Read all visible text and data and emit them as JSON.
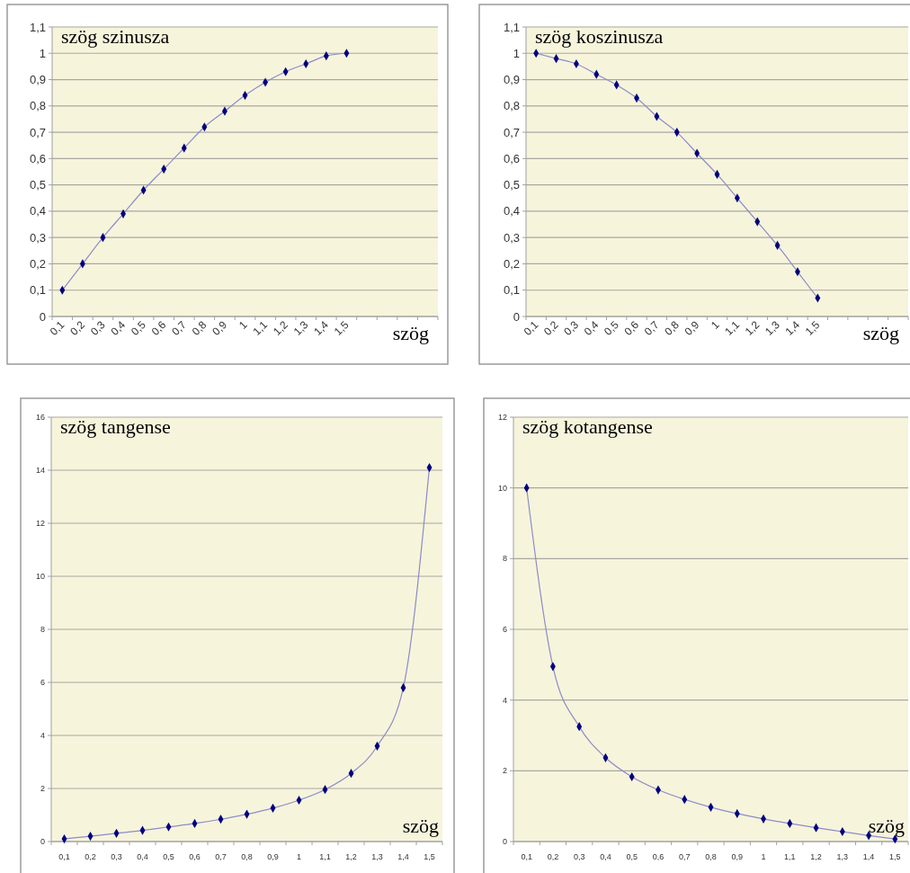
{
  "chart_data": [
    {
      "type": "line",
      "title": "szög szinusza",
      "xlabel": "szög",
      "categories": [
        "0,1",
        "0,2",
        "0,3",
        "0,4",
        "0,5",
        "0,6",
        "0,7",
        "0,8",
        "0,9",
        "1",
        "1,1",
        "1,2",
        "1,3",
        "1,4",
        "1,5",
        null,
        null,
        null,
        null
      ],
      "values": [
        0.1,
        0.2,
        0.3,
        0.39,
        0.48,
        0.56,
        0.64,
        0.72,
        0.78,
        0.84,
        0.89,
        0.93,
        0.96,
        0.99,
        1.0,
        null,
        null,
        null,
        null
      ],
      "color": "#000080",
      "marker": "diamond",
      "grid": "y",
      "ylim": [
        0,
        1.1
      ],
      "yticks": [
        0,
        {
          "value": 0.1,
          "label": "0,1"
        },
        {
          "value": 0.2,
          "label": "0,2"
        },
        {
          "value": 0.3,
          "label": "0,3"
        },
        {
          "value": 0.4,
          "label": "0,4"
        },
        {
          "value": 0.5,
          "label": "0,5"
        },
        {
          "value": 0.6,
          "label": "0,6"
        },
        {
          "value": 0.7,
          "label": "0,7"
        },
        {
          "value": 0.8,
          "label": "0,8"
        },
        {
          "value": 0.9,
          "label": "0,9"
        },
        1,
        {
          "value": 1.1,
          "label": "1,1"
        }
      ]
    },
    {
      "type": "line",
      "title": "szög koszinusza",
      "xlabel": "szög",
      "categories": [
        "0,1",
        "0,2",
        "0,3",
        "0,4",
        "0,5",
        "0,6",
        "0,7",
        "0,8",
        "0,9",
        "1",
        "1,1",
        "1,2",
        "1,3",
        "1,4",
        "1,5",
        null,
        null,
        null,
        null
      ],
      "values": [
        1.0,
        0.98,
        0.96,
        0.92,
        0.88,
        0.83,
        0.76,
        0.7,
        0.62,
        0.54,
        0.45,
        0.36,
        0.27,
        0.17,
        0.07,
        null,
        null,
        null,
        null
      ],
      "color": "#000080",
      "marker": "diamond",
      "grid": "y",
      "ylim": [
        0,
        1.1
      ],
      "yticks": [
        0,
        {
          "value": 0.1,
          "label": "0,1"
        },
        {
          "value": 0.2,
          "label": "0,2"
        },
        {
          "value": 0.3,
          "label": "0,3"
        },
        {
          "value": 0.4,
          "label": "0,4"
        },
        {
          "value": 0.5,
          "label": "0,5"
        },
        {
          "value": 0.6,
          "label": "0,6"
        },
        {
          "value": 0.7,
          "label": "0,7"
        },
        {
          "value": 0.8,
          "label": "0,8"
        },
        {
          "value": 0.9,
          "label": "0,9"
        },
        1,
        {
          "value": 1.1,
          "label": "1,1"
        }
      ]
    },
    {
      "type": "line",
      "title": "szög tangense",
      "xlabel": "szög",
      "categories": [
        "0,1",
        "0,2",
        "0,3",
        "0,4",
        "0,5",
        "0,6",
        "0,7",
        "0,8",
        "0,9",
        "1",
        "1,1",
        "1,2",
        "1,3",
        "1,4",
        "1,5"
      ],
      "values": [
        0.1,
        0.2,
        0.31,
        0.42,
        0.55,
        0.68,
        0.84,
        1.03,
        1.26,
        1.56,
        1.96,
        2.57,
        3.6,
        5.8,
        14.1
      ],
      "color": "#000080",
      "marker": "diamond",
      "grid": "y",
      "ylim": [
        0,
        16
      ],
      "yticks": [
        0,
        2,
        4,
        6,
        8,
        10,
        12,
        14,
        16
      ]
    },
    {
      "type": "line",
      "title": "szög kotangense",
      "xlabel": "szög",
      "categories": [
        "0,1",
        "0,2",
        "0,3",
        "0,4",
        "0,5",
        "0,6",
        "0,7",
        "0,8",
        "0,9",
        "1",
        "1,1",
        "1,2",
        "1,3",
        "1,4",
        "1,5"
      ],
      "values": [
        10,
        4.95,
        3.25,
        2.37,
        1.83,
        1.46,
        1.19,
        0.97,
        0.79,
        0.64,
        0.51,
        0.39,
        0.28,
        0.17,
        0.07
      ],
      "color": "#000080",
      "marker": "diamond",
      "grid": "y",
      "ylim": [
        0,
        12
      ],
      "yticks": [
        0,
        2,
        4,
        6,
        8,
        10,
        12
      ]
    }
  ]
}
